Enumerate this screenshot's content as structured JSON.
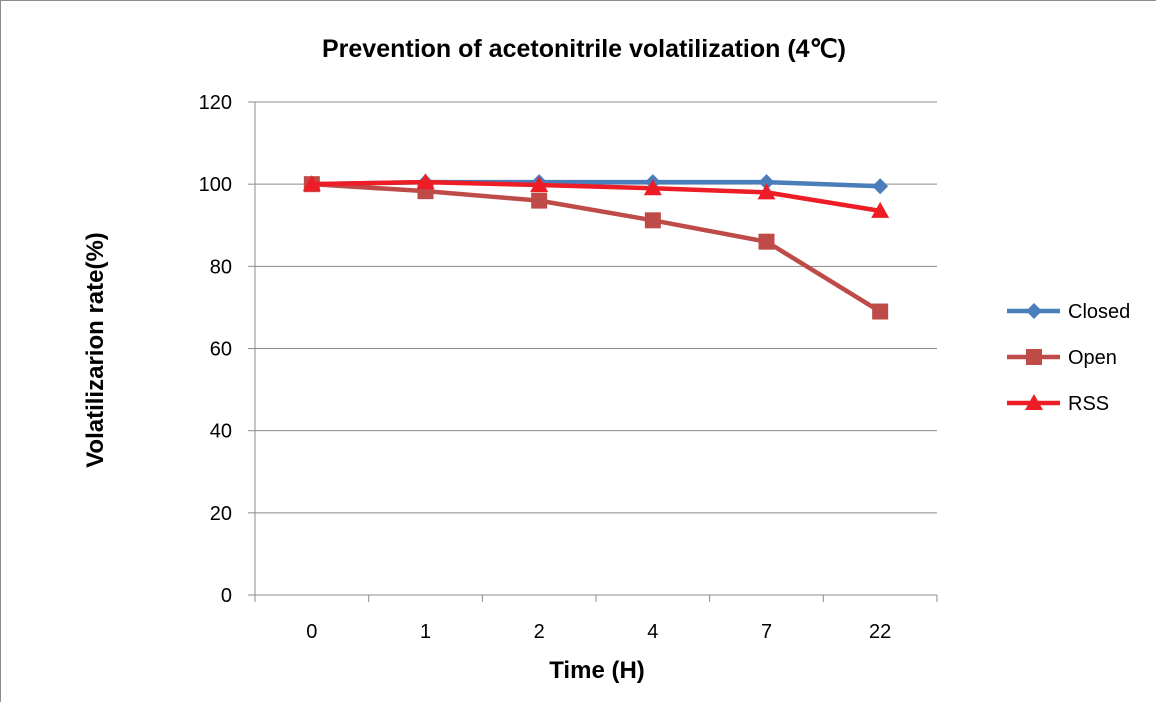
{
  "chart_data": {
    "type": "line",
    "title": "Prevention of acetonitrile volatilization (4℃)",
    "xlabel": "Time (H)",
    "ylabel": "Volatilizarion rate(%)",
    "categories": [
      "0",
      "1",
      "2",
      "4",
      "7",
      "22"
    ],
    "ylim": [
      0,
      120
    ],
    "yticks": [
      0,
      20,
      40,
      60,
      80,
      100,
      120
    ],
    "grid": true,
    "legend_position": "right",
    "series": [
      {
        "name": "Closed",
        "color": "#4a7ebb",
        "marker": "diamond",
        "values": [
          100,
          100.5,
          100.5,
          100.5,
          100.5,
          99.5
        ]
      },
      {
        "name": "Open",
        "color": "#be4b48",
        "marker": "square",
        "values": [
          100,
          98.3,
          96,
          91.2,
          86,
          69
        ]
      },
      {
        "name": "RSS",
        "color": "#ee1c25",
        "marker": "triangle",
        "values": [
          100,
          100.5,
          99.8,
          99,
          98,
          93.5
        ]
      }
    ]
  }
}
